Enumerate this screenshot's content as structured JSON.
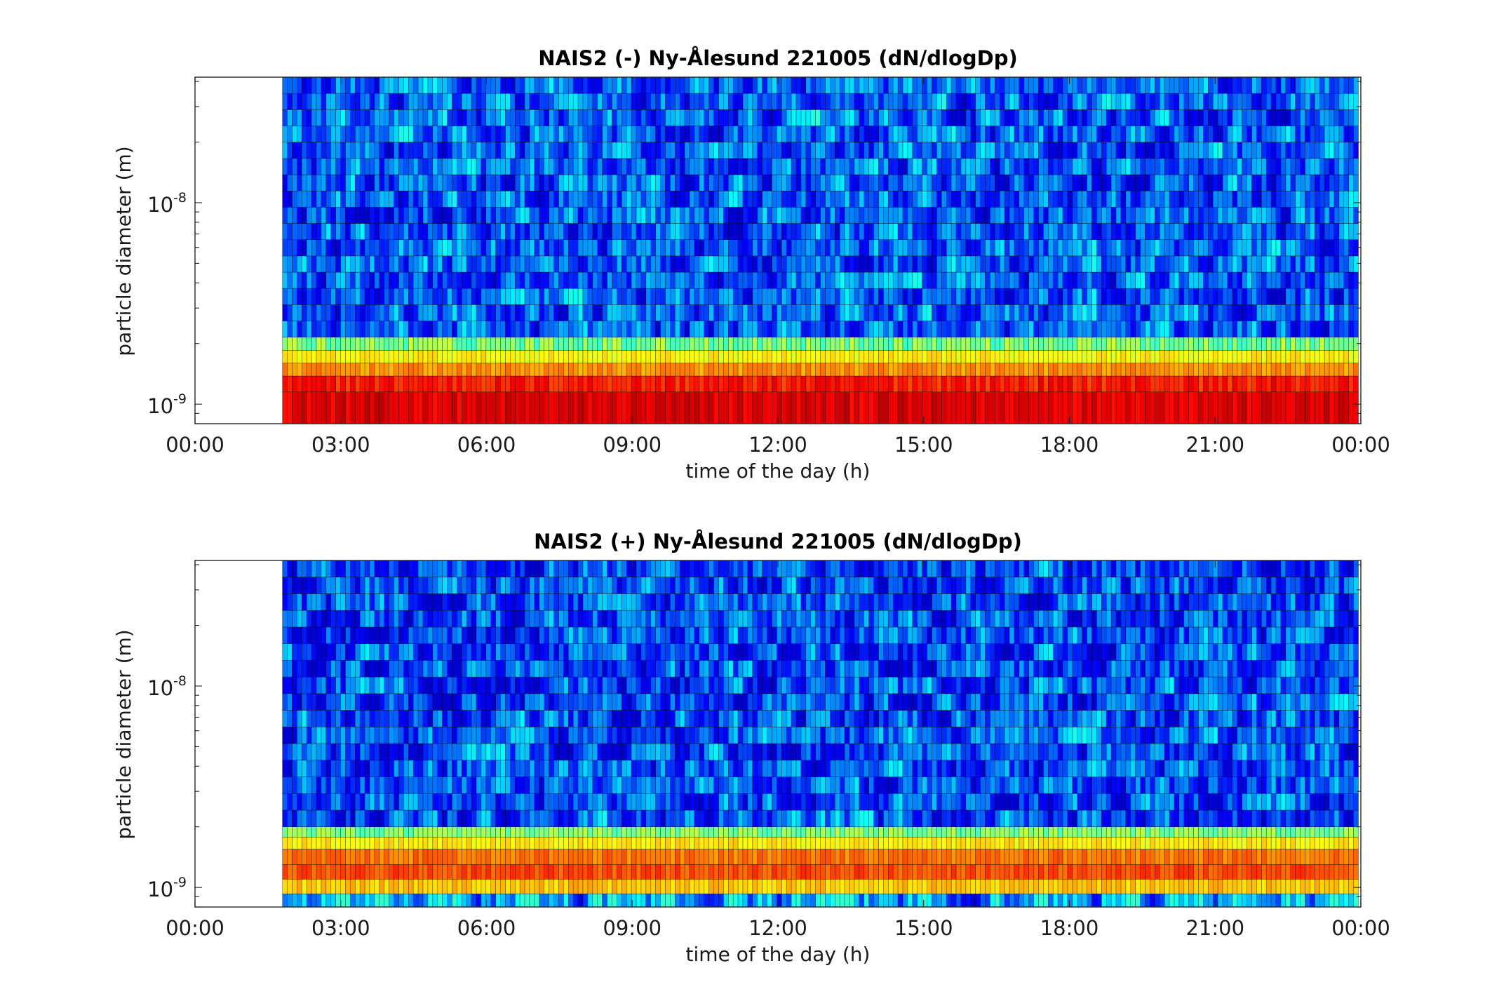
{
  "chart_data": [
    {
      "type": "heatmap",
      "title": "NAIS2 (-) Ny-Ålesund 221005 (dN/dlogDp)",
      "xlabel": "time of the day (h)",
      "ylabel": "particle diameter (m)",
      "x_ticks": [
        "00:00",
        "03:00",
        "06:00",
        "09:00",
        "12:00",
        "15:00",
        "18:00",
        "21:00",
        "00:00"
      ],
      "xlim_hours": [
        0,
        24
      ],
      "data_start_hour": 1.8,
      "y_scale": "log",
      "ylim_m": [
        8e-10,
        4.2e-08
      ],
      "y_ticks": [
        {
          "value": 1e-09,
          "base": "10",
          "exp": "-9"
        },
        {
          "value": 1e-08,
          "base": "10",
          "exp": "-8"
        }
      ],
      "colormap": "jet",
      "bands": [
        {
          "dp_from": 8e-10,
          "dp_to": 1.15e-09,
          "level": 0.9,
          "variation": 0.04
        },
        {
          "dp_from": 1.15e-09,
          "dp_to": 1.38e-09,
          "level": 0.85,
          "variation": 0.05
        },
        {
          "dp_from": 1.38e-09,
          "dp_to": 1.6e-09,
          "level": 0.73,
          "variation": 0.04
        },
        {
          "dp_from": 1.6e-09,
          "dp_to": 1.85e-09,
          "level": 0.63,
          "variation": 0.04
        },
        {
          "dp_from": 1.85e-09,
          "dp_to": 2.15e-09,
          "level": 0.5,
          "variation": 0.08
        },
        {
          "dp_from": 2.15e-09,
          "dp_to": 4.2e-08,
          "level": 0.22,
          "variation": 0.2
        }
      ]
    },
    {
      "type": "heatmap",
      "title": "NAIS2 (+) Ny-Ålesund 221005 (dN/dlogDp)",
      "xlabel": "time of the day (h)",
      "ylabel": "particle diameter (m)",
      "x_ticks": [
        "00:00",
        "03:00",
        "06:00",
        "09:00",
        "12:00",
        "15:00",
        "18:00",
        "21:00",
        "00:00"
      ],
      "xlim_hours": [
        0,
        24
      ],
      "data_start_hour": 1.8,
      "y_scale": "log",
      "ylim_m": [
        8e-10,
        4.2e-08
      ],
      "y_ticks": [
        {
          "value": 1e-09,
          "base": "10",
          "exp": "-9"
        },
        {
          "value": 1e-08,
          "base": "10",
          "exp": "-8"
        }
      ],
      "colormap": "jet",
      "bands": [
        {
          "dp_from": 8e-10,
          "dp_to": 9.3e-10,
          "level": 0.3,
          "variation": 0.25
        },
        {
          "dp_from": 9.3e-10,
          "dp_to": 1.1e-09,
          "level": 0.68,
          "variation": 0.04
        },
        {
          "dp_from": 1.1e-09,
          "dp_to": 1.3e-09,
          "level": 0.8,
          "variation": 0.04
        },
        {
          "dp_from": 1.3e-09,
          "dp_to": 1.55e-09,
          "level": 0.76,
          "variation": 0.04
        },
        {
          "dp_from": 1.55e-09,
          "dp_to": 1.78e-09,
          "level": 0.64,
          "variation": 0.04
        },
        {
          "dp_from": 1.78e-09,
          "dp_to": 2e-09,
          "level": 0.5,
          "variation": 0.06
        },
        {
          "dp_from": 2e-09,
          "dp_to": 4.2e-08,
          "level": 0.2,
          "variation": 0.2
        }
      ]
    }
  ]
}
